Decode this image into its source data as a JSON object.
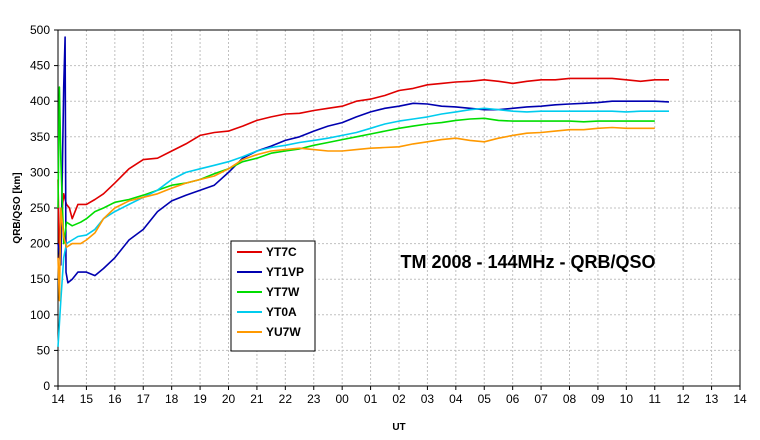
{
  "chart_data": {
    "type": "line",
    "title": "TM 2008 - 144MHz - QRB/QSO",
    "xlabel": "UT",
    "ylabel": "QRB/QSO [km]",
    "ylim": [
      0,
      500
    ],
    "yticks": [
      0,
      50,
      100,
      150,
      200,
      250,
      300,
      350,
      400,
      450,
      500
    ],
    "categories": [
      "14",
      "15",
      "16",
      "17",
      "18",
      "19",
      "20",
      "21",
      "22",
      "23",
      "00",
      "01",
      "02",
      "03",
      "04",
      "05",
      "06",
      "07",
      "08",
      "09",
      "10",
      "11",
      "12",
      "13",
      "14"
    ],
    "grid": true,
    "legend_position": "center-left",
    "series": [
      {
        "name": "YT7C",
        "color": "#e00000",
        "points": [
          [
            0,
            290
          ],
          [
            0.05,
            180
          ],
          [
            0.1,
            230
          ],
          [
            0.2,
            270
          ],
          [
            0.3,
            255
          ],
          [
            0.4,
            250
          ],
          [
            0.5,
            235
          ],
          [
            0.7,
            255
          ],
          [
            1,
            255
          ],
          [
            1.3,
            262
          ],
          [
            1.6,
            270
          ],
          [
            2,
            285
          ],
          [
            2.5,
            305
          ],
          [
            3,
            318
          ],
          [
            3.5,
            320
          ],
          [
            4,
            330
          ],
          [
            4.5,
            340
          ],
          [
            5,
            352
          ],
          [
            5.5,
            356
          ],
          [
            6,
            358
          ],
          [
            6.5,
            365
          ],
          [
            7,
            373
          ],
          [
            7.5,
            378
          ],
          [
            8,
            382
          ],
          [
            8.5,
            383
          ],
          [
            9,
            387
          ],
          [
            9.5,
            390
          ],
          [
            10,
            393
          ],
          [
            10.5,
            400
          ],
          [
            11,
            403
          ],
          [
            11.5,
            408
          ],
          [
            12,
            415
          ],
          [
            12.5,
            418
          ],
          [
            13,
            423
          ],
          [
            13.5,
            425
          ],
          [
            14,
            427
          ],
          [
            14.5,
            428
          ],
          [
            15,
            430
          ],
          [
            15.5,
            428
          ],
          [
            16,
            425
          ],
          [
            16.5,
            428
          ],
          [
            17,
            430
          ],
          [
            17.5,
            430
          ],
          [
            18,
            432
          ],
          [
            18.5,
            432
          ],
          [
            19,
            432
          ],
          [
            19.5,
            432
          ],
          [
            20,
            430
          ],
          [
            20.5,
            428
          ],
          [
            21,
            430
          ],
          [
            21.5,
            430
          ]
        ]
      },
      {
        "name": "YT1VP",
        "color": "#0000b0",
        "points": [
          [
            0,
            200
          ],
          [
            0.1,
            170
          ],
          [
            0.2,
            420
          ],
          [
            0.25,
            490
          ],
          [
            0.28,
            160
          ],
          [
            0.35,
            145
          ],
          [
            0.5,
            150
          ],
          [
            0.7,
            160
          ],
          [
            1,
            160
          ],
          [
            1.3,
            155
          ],
          [
            1.6,
            165
          ],
          [
            2,
            180
          ],
          [
            2.5,
            205
          ],
          [
            3,
            220
          ],
          [
            3.5,
            245
          ],
          [
            4,
            260
          ],
          [
            4.5,
            268
          ],
          [
            5,
            275
          ],
          [
            5.5,
            282
          ],
          [
            6,
            300
          ],
          [
            6.5,
            320
          ],
          [
            7,
            330
          ],
          [
            7.5,
            337
          ],
          [
            8,
            345
          ],
          [
            8.5,
            350
          ],
          [
            9,
            358
          ],
          [
            9.5,
            365
          ],
          [
            10,
            370
          ],
          [
            10.5,
            378
          ],
          [
            11,
            385
          ],
          [
            11.5,
            390
          ],
          [
            12,
            393
          ],
          [
            12.5,
            397
          ],
          [
            13,
            396
          ],
          [
            13.5,
            393
          ],
          [
            14,
            392
          ],
          [
            14.5,
            390
          ],
          [
            15,
            388
          ],
          [
            15.5,
            388
          ],
          [
            16,
            390
          ],
          [
            16.5,
            392
          ],
          [
            17,
            393
          ],
          [
            17.5,
            395
          ],
          [
            18,
            396
          ],
          [
            18.5,
            397
          ],
          [
            19,
            398
          ],
          [
            19.5,
            400
          ],
          [
            20,
            400
          ],
          [
            20.5,
            400
          ],
          [
            21,
            400
          ],
          [
            21.5,
            399
          ]
        ]
      },
      {
        "name": "YT7W",
        "color": "#00dd00",
        "points": [
          [
            0,
            250
          ],
          [
            0.05,
            420
          ],
          [
            0.1,
            320
          ],
          [
            0.2,
            200
          ],
          [
            0.3,
            230
          ],
          [
            0.5,
            225
          ],
          [
            0.8,
            230
          ],
          [
            1,
            235
          ],
          [
            1.3,
            245
          ],
          [
            1.6,
            250
          ],
          [
            2,
            258
          ],
          [
            2.5,
            262
          ],
          [
            3,
            268
          ],
          [
            3.5,
            275
          ],
          [
            4,
            282
          ],
          [
            4.5,
            285
          ],
          [
            5,
            290
          ],
          [
            5.5,
            298
          ],
          [
            6,
            305
          ],
          [
            6.5,
            315
          ],
          [
            7,
            320
          ],
          [
            7.5,
            327
          ],
          [
            8,
            330
          ],
          [
            8.5,
            333
          ],
          [
            9,
            338
          ],
          [
            9.5,
            342
          ],
          [
            10,
            346
          ],
          [
            10.5,
            350
          ],
          [
            11,
            354
          ],
          [
            11.5,
            358
          ],
          [
            12,
            362
          ],
          [
            12.5,
            365
          ],
          [
            13,
            368
          ],
          [
            13.5,
            370
          ],
          [
            14,
            373
          ],
          [
            14.5,
            375
          ],
          [
            15,
            376
          ],
          [
            15.5,
            373
          ],
          [
            16,
            372
          ],
          [
            16.5,
            372
          ],
          [
            17,
            372
          ],
          [
            17.5,
            372
          ],
          [
            18,
            372
          ],
          [
            18.5,
            371
          ],
          [
            19,
            372
          ],
          [
            19.5,
            372
          ],
          [
            20,
            372
          ],
          [
            20.5,
            372
          ],
          [
            21,
            372
          ]
        ]
      },
      {
        "name": "YT0A",
        "color": "#00ccee",
        "points": [
          [
            0,
            55
          ],
          [
            0.1,
            120
          ],
          [
            0.2,
            180
          ],
          [
            0.3,
            200
          ],
          [
            0.5,
            205
          ],
          [
            0.7,
            210
          ],
          [
            1,
            212
          ],
          [
            1.3,
            220
          ],
          [
            1.6,
            235
          ],
          [
            2,
            245
          ],
          [
            2.5,
            255
          ],
          [
            3,
            265
          ],
          [
            3.5,
            275
          ],
          [
            4,
            290
          ],
          [
            4.5,
            300
          ],
          [
            5,
            305
          ],
          [
            5.5,
            310
          ],
          [
            6,
            315
          ],
          [
            6.5,
            322
          ],
          [
            7,
            330
          ],
          [
            7.5,
            335
          ],
          [
            8,
            338
          ],
          [
            8.5,
            342
          ],
          [
            9,
            345
          ],
          [
            9.5,
            348
          ],
          [
            10,
            352
          ],
          [
            10.5,
            356
          ],
          [
            11,
            362
          ],
          [
            11.5,
            368
          ],
          [
            12,
            372
          ],
          [
            12.5,
            375
          ],
          [
            13,
            378
          ],
          [
            13.5,
            382
          ],
          [
            14,
            385
          ],
          [
            14.5,
            388
          ],
          [
            15,
            390
          ],
          [
            15.5,
            388
          ],
          [
            16,
            386
          ],
          [
            16.5,
            385
          ],
          [
            17,
            386
          ],
          [
            17.5,
            386
          ],
          [
            18,
            386
          ],
          [
            18.5,
            386
          ],
          [
            19,
            386
          ],
          [
            19.5,
            386
          ],
          [
            20,
            385
          ],
          [
            20.5,
            386
          ],
          [
            21,
            386
          ],
          [
            21.5,
            386
          ]
        ]
      },
      {
        "name": "YU7W",
        "color": "#ff9900",
        "points": [
          [
            0,
            180
          ],
          [
            0.05,
            120
          ],
          [
            0.1,
            250
          ],
          [
            0.2,
            210
          ],
          [
            0.3,
            195
          ],
          [
            0.5,
            200
          ],
          [
            0.8,
            200
          ],
          [
            1,
            205
          ],
          [
            1.3,
            215
          ],
          [
            1.6,
            235
          ],
          [
            2,
            250
          ],
          [
            2.5,
            260
          ],
          [
            3,
            265
          ],
          [
            3.5,
            270
          ],
          [
            4,
            278
          ],
          [
            4.5,
            285
          ],
          [
            5,
            290
          ],
          [
            5.5,
            295
          ],
          [
            6,
            305
          ],
          [
            6.5,
            318
          ],
          [
            7,
            325
          ],
          [
            7.5,
            330
          ],
          [
            8,
            332
          ],
          [
            8.5,
            334
          ],
          [
            9,
            332
          ],
          [
            9.5,
            330
          ],
          [
            10,
            330
          ],
          [
            10.5,
            332
          ],
          [
            11,
            334
          ],
          [
            11.5,
            335
          ],
          [
            12,
            336
          ],
          [
            12.5,
            340
          ],
          [
            13,
            343
          ],
          [
            13.5,
            346
          ],
          [
            14,
            348
          ],
          [
            14.5,
            345
          ],
          [
            15,
            343
          ],
          [
            15.5,
            348
          ],
          [
            16,
            352
          ],
          [
            16.5,
            355
          ],
          [
            17,
            356
          ],
          [
            17.5,
            358
          ],
          [
            18,
            360
          ],
          [
            18.5,
            360
          ],
          [
            19,
            362
          ],
          [
            19.5,
            363
          ],
          [
            20,
            362
          ],
          [
            20.5,
            362
          ],
          [
            21,
            362
          ]
        ]
      }
    ]
  }
}
